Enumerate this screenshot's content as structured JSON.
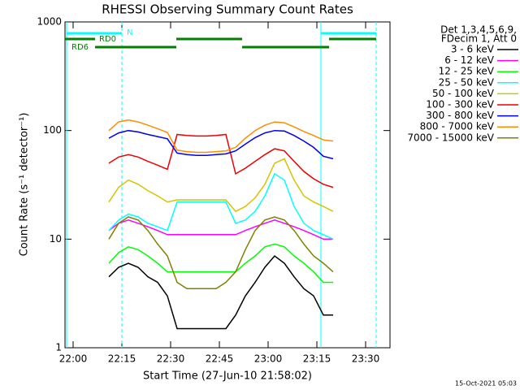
{
  "chart_data": {
    "type": "line",
    "title": "RHESSI Observing Summary Count Rates",
    "xlabel": "Start Time (27-Jun-10 21:58:02)",
    "ylabel": "Count Rate (s⁻¹ detector⁻¹)",
    "footer": "15-Oct-2021 05:03",
    "legend_header": [
      "Det 1,3,4,5,6,9,",
      "FDecim 1, Att 0"
    ],
    "log_y": true,
    "xlim": [
      "21:57:30",
      "23:37:30"
    ],
    "xticks": [
      "22:00",
      "22:15",
      "22:30",
      "22:45",
      "23:00",
      "23:15",
      "23:30"
    ],
    "ylim": [
      1,
      1000
    ],
    "yticks": [
      1,
      10,
      100,
      1000
    ],
    "x": [
      "22:11",
      "22:14",
      "22:17",
      "22:20",
      "22:23",
      "22:26",
      "22:29",
      "22:32",
      "22:35",
      "22:38",
      "22:41",
      "22:44",
      "22:47",
      "22:50",
      "22:53",
      "22:56",
      "22:59",
      "23:02",
      "23:05",
      "23:08",
      "23:11",
      "23:14",
      "23:17",
      "23:20"
    ],
    "series": [
      {
        "name": "3 - 6 keV",
        "color": "#000000",
        "values": [
          4.5,
          5.5,
          6,
          5.5,
          4.5,
          4,
          3,
          1.5,
          1.5,
          1.5,
          1.5,
          1.5,
          1.5,
          2,
          3,
          4,
          5.5,
          7,
          6,
          4.5,
          3.5,
          3,
          2,
          2
        ]
      },
      {
        "name": "6 - 12 keV",
        "color": "#ff00ff",
        "values": [
          12,
          14,
          15,
          14,
          13,
          12,
          11,
          11,
          11,
          11,
          11,
          11,
          11,
          11,
          12,
          13,
          14,
          15,
          14,
          13,
          12,
          11,
          10,
          10
        ]
      },
      {
        "name": "12 - 25 keV",
        "color": "#00ff00",
        "values": [
          6,
          7.5,
          8.5,
          8,
          7,
          6,
          5,
          5,
          5,
          5,
          5,
          5,
          5,
          5,
          6,
          7,
          8.5,
          9,
          8.5,
          7,
          6,
          5,
          4,
          4
        ]
      },
      {
        "name": "25 - 50 keV",
        "color": "#00ffff",
        "values": [
          12,
          15,
          17,
          16,
          14,
          13,
          12,
          22,
          22,
          22,
          22,
          22,
          22,
          14,
          15,
          18,
          25,
          40,
          35,
          20,
          14,
          12,
          11,
          10
        ]
      },
      {
        "name": "50 - 100 keV",
        "color": "#d4c400",
        "values": [
          22,
          30,
          35,
          32,
          28,
          25,
          22,
          23,
          23,
          23,
          23,
          23,
          23,
          18,
          20,
          24,
          32,
          50,
          55,
          35,
          25,
          22,
          20,
          18
        ]
      },
      {
        "name": "100 - 300 keV",
        "color": "#ee0000",
        "values": [
          50,
          57,
          60,
          57,
          52,
          48,
          44,
          92,
          90,
          89,
          89,
          90,
          92,
          40,
          45,
          52,
          60,
          68,
          65,
          52,
          42,
          36,
          32,
          30
        ]
      },
      {
        "name": "300 - 800 keV",
        "color": "#0000ee",
        "values": [
          85,
          95,
          100,
          97,
          92,
          88,
          84,
          62,
          60,
          59,
          59,
          60,
          61,
          65,
          75,
          86,
          95,
          100,
          99,
          90,
          80,
          70,
          58,
          55
        ]
      },
      {
        "name": "800 - 7000 keV",
        "color": "#ff8c00",
        "values": [
          100,
          120,
          125,
          120,
          112,
          104,
          96,
          66,
          64,
          63,
          63,
          64,
          65,
          70,
          85,
          100,
          112,
          120,
          118,
          108,
          98,
          90,
          82,
          80
        ]
      },
      {
        "name": "7000 - 15000 keV",
        "color": "#808000",
        "values": [
          10,
          14,
          16,
          15,
          12,
          9,
          7,
          4,
          3.5,
          3.5,
          3.5,
          3.5,
          4,
          5,
          8,
          12,
          15,
          16,
          15,
          12,
          9,
          7,
          6,
          5
        ]
      }
    ],
    "flags": [
      {
        "label": "N",
        "color": "#00ffff",
        "intervals": [
          [
            "21:58",
            "22:15"
          ],
          [
            "23:16:15",
            "23:33:15"
          ]
        ]
      },
      {
        "label": "RD0",
        "color": "#007f00",
        "intervals": [
          [
            "21:57:30",
            "22:06:45"
          ],
          [
            "22:31:45",
            "22:52"
          ],
          [
            "23:18:45",
            "23:33:15"
          ]
        ]
      },
      {
        "label": "RD6",
        "color": "#007f00",
        "intervals": [
          [
            "22:06:45",
            "22:31:45"
          ],
          [
            "22:52",
            "23:18:45"
          ]
        ]
      }
    ]
  }
}
